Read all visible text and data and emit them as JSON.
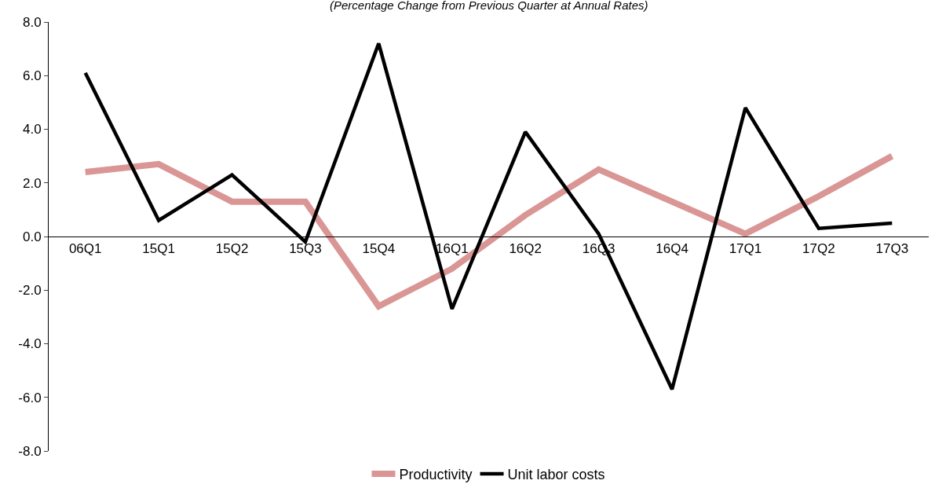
{
  "chart_data": {
    "type": "line",
    "subtitle": "(Percentage Change from Previous Quarter at Annual Rates)",
    "categories": [
      "06Q1",
      "15Q1",
      "15Q2",
      "15Q3",
      "15Q4",
      "16Q1",
      "16Q2",
      "16Q3",
      "16Q4",
      "17Q1",
      "17Q2",
      "17Q3"
    ],
    "series": [
      {
        "name": "Productivity",
        "color": "#d99694",
        "values": [
          2.4,
          2.7,
          1.3,
          1.3,
          -2.6,
          -1.2,
          0.8,
          2.5,
          1.3,
          0.1,
          1.5,
          3.0
        ]
      },
      {
        "name": "Unit labor costs",
        "color": "#000000",
        "values": [
          6.1,
          0.6,
          2.3,
          -0.2,
          7.2,
          -2.7,
          3.9,
          0.1,
          -5.7,
          4.8,
          0.3,
          0.5
        ]
      }
    ],
    "ylim": [
      -8,
      8
    ],
    "yticks": [
      {
        "value": -8,
        "label": "-8.0"
      },
      {
        "value": -6,
        "label": "-6.0"
      },
      {
        "value": -4,
        "label": "-4.0"
      },
      {
        "value": -2,
        "label": "-2.0"
      },
      {
        "value": 0,
        "label": "0.0"
      },
      {
        "value": 2,
        "label": "2.0"
      },
      {
        "value": 4,
        "label": "4.0"
      },
      {
        "value": 6,
        "label": "6.0"
      },
      {
        "value": 8,
        "label": "8.0"
      }
    ],
    "grid": false,
    "legend": "bottom",
    "marker": "none",
    "line_style": "solid"
  }
}
